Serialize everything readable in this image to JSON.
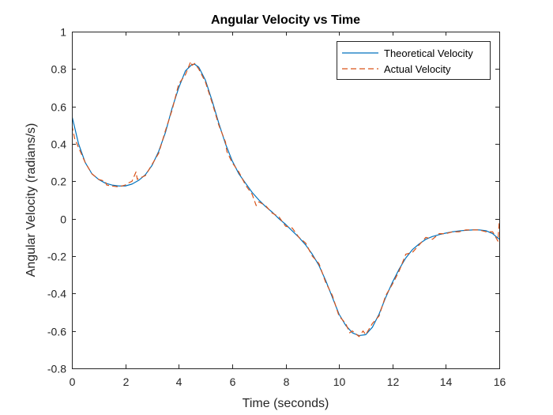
{
  "chart_data": {
    "type": "line",
    "title": "Angular Velocity vs Time",
    "xlabel": "Time (seconds)",
    "ylabel": "Angular Velocity (radians/s)",
    "xlim": [
      0,
      16
    ],
    "ylim": [
      -0.8,
      1
    ],
    "xticks": [
      0,
      2,
      4,
      6,
      8,
      10,
      12,
      14,
      16
    ],
    "yticks": [
      -0.8,
      -0.6,
      -0.4,
      -0.2,
      0,
      0.2,
      0.4,
      0.6,
      0.8,
      1
    ],
    "xtick_labels": [
      "0",
      "2",
      "4",
      "6",
      "8",
      "10",
      "12",
      "14",
      "16"
    ],
    "ytick_labels": [
      "-0.8",
      "-0.6",
      "-0.4",
      "-0.2",
      "0",
      "0.2",
      "0.4",
      "0.6",
      "0.8",
      "1"
    ],
    "grid": false,
    "legend_position": "top-right",
    "series": [
      {
        "name": "Theoretical Velocity",
        "color": "#0072BD",
        "style": "solid",
        "x": [
          0,
          0.25,
          0.5,
          0.75,
          1.0,
          1.25,
          1.5,
          1.75,
          2.0,
          2.25,
          2.5,
          2.75,
          3.0,
          3.25,
          3.5,
          3.75,
          4.0,
          4.25,
          4.5,
          4.6,
          4.75,
          5.0,
          5.25,
          5.5,
          5.75,
          6.0,
          6.25,
          6.5,
          6.75,
          7.0,
          7.25,
          7.5,
          7.75,
          8.0,
          8.25,
          8.5,
          8.75,
          9.0,
          9.25,
          9.5,
          9.75,
          10.0,
          10.25,
          10.5,
          10.75,
          11.0,
          11.25,
          11.5,
          11.75,
          12.0,
          12.25,
          12.5,
          12.75,
          13.0,
          13.25,
          13.5,
          13.75,
          14.0,
          14.25,
          14.5,
          14.75,
          15.0,
          15.25,
          15.5,
          15.75,
          16.0
        ],
        "y": [
          0.55,
          0.4,
          0.3,
          0.24,
          0.21,
          0.19,
          0.18,
          0.175,
          0.175,
          0.185,
          0.205,
          0.235,
          0.285,
          0.36,
          0.46,
          0.59,
          0.7,
          0.79,
          0.825,
          0.825,
          0.81,
          0.74,
          0.63,
          0.51,
          0.4,
          0.31,
          0.24,
          0.19,
          0.14,
          0.1,
          0.065,
          0.035,
          0.0,
          -0.03,
          -0.065,
          -0.1,
          -0.14,
          -0.19,
          -0.25,
          -0.33,
          -0.42,
          -0.51,
          -0.57,
          -0.61,
          -0.625,
          -0.62,
          -0.58,
          -0.51,
          -0.42,
          -0.34,
          -0.27,
          -0.21,
          -0.165,
          -0.135,
          -0.11,
          -0.095,
          -0.085,
          -0.077,
          -0.07,
          -0.065,
          -0.062,
          -0.06,
          -0.06,
          -0.064,
          -0.08,
          -0.11
        ]
      },
      {
        "name": "Actual Velocity",
        "color": "#D95319",
        "style": "dashed",
        "x": [
          0,
          0.1,
          0.25,
          0.5,
          0.75,
          1.0,
          1.25,
          1.3,
          1.5,
          1.75,
          2.0,
          2.1,
          2.25,
          2.4,
          2.45,
          2.5,
          2.75,
          3.0,
          3.25,
          3.5,
          3.75,
          4.0,
          4.25,
          4.45,
          4.5,
          4.6,
          4.75,
          5.0,
          5.25,
          5.5,
          5.75,
          5.8,
          6.0,
          6.25,
          6.5,
          6.75,
          6.9,
          7.0,
          7.25,
          7.5,
          7.75,
          8.0,
          8.25,
          8.5,
          8.75,
          9.0,
          9.25,
          9.5,
          9.75,
          10.0,
          10.25,
          10.4,
          10.5,
          10.75,
          10.9,
          11.0,
          11.25,
          11.5,
          11.75,
          12.0,
          12.25,
          12.5,
          12.75,
          13.0,
          13.25,
          13.5,
          13.75,
          14.0,
          14.25,
          14.5,
          14.75,
          15.0,
          15.25,
          15.5,
          15.75,
          15.95,
          16.0
        ],
        "y": [
          0.5,
          0.43,
          0.38,
          0.3,
          0.24,
          0.21,
          0.2,
          0.18,
          0.175,
          0.17,
          0.18,
          0.19,
          0.2,
          0.25,
          0.21,
          0.215,
          0.23,
          0.29,
          0.35,
          0.47,
          0.58,
          0.72,
          0.77,
          0.84,
          0.82,
          0.83,
          0.8,
          0.73,
          0.62,
          0.5,
          0.41,
          0.36,
          0.3,
          0.25,
          0.18,
          0.13,
          0.07,
          0.09,
          0.07,
          0.03,
          0.01,
          -0.04,
          -0.05,
          -0.1,
          -0.13,
          -0.2,
          -0.24,
          -0.34,
          -0.41,
          -0.52,
          -0.56,
          -0.61,
          -0.6,
          -0.63,
          -0.6,
          -0.62,
          -0.56,
          -0.52,
          -0.41,
          -0.35,
          -0.28,
          -0.19,
          -0.18,
          -0.14,
          -0.1,
          -0.11,
          -0.08,
          -0.08,
          -0.07,
          -0.07,
          -0.06,
          -0.06,
          -0.06,
          -0.07,
          -0.07,
          -0.12,
          -0.01
        ]
      }
    ]
  }
}
